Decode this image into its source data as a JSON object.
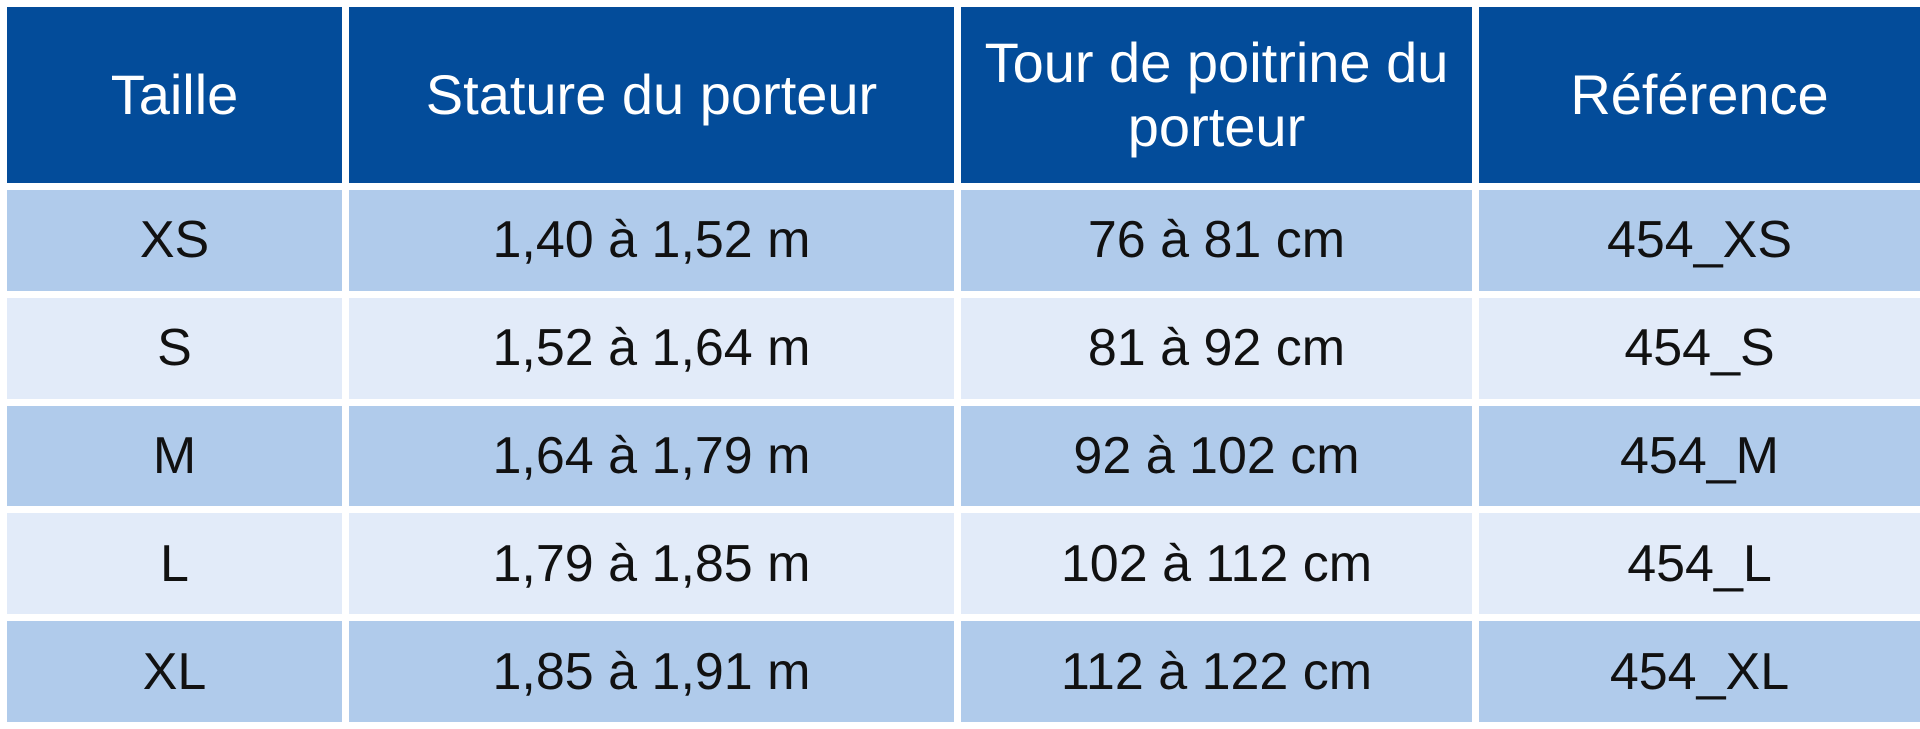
{
  "table": {
    "headers": [
      "Taille",
      "Stature du porteur",
      "Tour de poitrine du porteur",
      "Référence"
    ],
    "rows": [
      [
        "XS",
        "1,40 à 1,52 m",
        "76 à 81 cm",
        "454_XS"
      ],
      [
        "S",
        "1,52 à 1,64 m",
        "81 à 92 cm",
        "454_S"
      ],
      [
        "M",
        "1,64 à 1,79 m",
        "92 à 102 cm",
        "454_M"
      ],
      [
        "L",
        "1,79 à 1,85 m",
        "102 à 112 cm",
        "454_L"
      ],
      [
        "XL",
        "1,85 à 1,91 m",
        "112 à 122 cm",
        "454_XL"
      ]
    ],
    "colors": {
      "header_background": "#034c9a",
      "header_text": "#ffffff",
      "row_dark": "#b0cbeb",
      "row_light": "#e2ebf9",
      "body_text": "#111111"
    }
  }
}
